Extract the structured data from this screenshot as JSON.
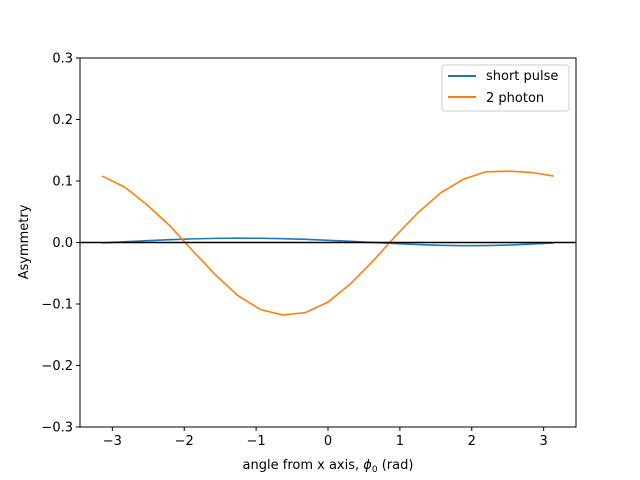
{
  "chart_data": {
    "type": "line",
    "title": "",
    "xlabel": "angle from x axis, ",
    "xlabel_symbol": "ϕ",
    "xlabel_subscript": "0",
    "xlabel_unit": " (rad)",
    "ylabel": "Asymmetry",
    "xlim": [
      -3.45,
      3.45
    ],
    "ylim": [
      -0.3,
      0.3
    ],
    "xticks": [
      -3,
      -2,
      -1,
      0,
      1,
      2,
      3
    ],
    "xtick_labels": [
      "−3",
      "−2",
      "−1",
      "0",
      "1",
      "2",
      "3"
    ],
    "yticks": [
      -0.3,
      -0.2,
      -0.1,
      0.0,
      0.1,
      0.2,
      0.3
    ],
    "ytick_labels": [
      "−0.3",
      "−0.2",
      "−0.1",
      "0.0",
      "0.1",
      "0.2",
      "0.3"
    ],
    "grid": false,
    "legend_position": "top-right",
    "reference_line": {
      "y": 0,
      "color": "#000000"
    },
    "x": [
      -3.1416,
      -2.8274,
      -2.5133,
      -2.1991,
      -1.885,
      -1.5708,
      -1.2566,
      -0.9425,
      -0.6283,
      -0.3142,
      0.0,
      0.3142,
      0.6283,
      0.9425,
      1.2566,
      1.5708,
      1.885,
      2.1991,
      2.5133,
      2.8274,
      3.1416
    ],
    "series": [
      {
        "name": "short pulse",
        "color": "#1f77b4",
        "values": [
          -0.0007,
          0.0012,
          0.003,
          0.0046,
          0.0059,
          0.0067,
          0.007,
          0.0069,
          0.0062,
          0.0051,
          0.0036,
          0.0019,
          0.0,
          -0.0018,
          -0.0034,
          -0.0046,
          -0.0052,
          -0.005,
          -0.0041,
          -0.0025,
          -0.0007
        ]
      },
      {
        "name": "2 photon",
        "color": "#ff7f0e",
        "values": [
          0.108,
          0.09,
          0.061,
          0.027,
          -0.013,
          -0.052,
          -0.086,
          -0.109,
          -0.118,
          -0.114,
          -0.097,
          -0.067,
          -0.03,
          0.011,
          0.049,
          0.081,
          0.103,
          0.115,
          0.116,
          0.114,
          0.108
        ]
      }
    ]
  }
}
